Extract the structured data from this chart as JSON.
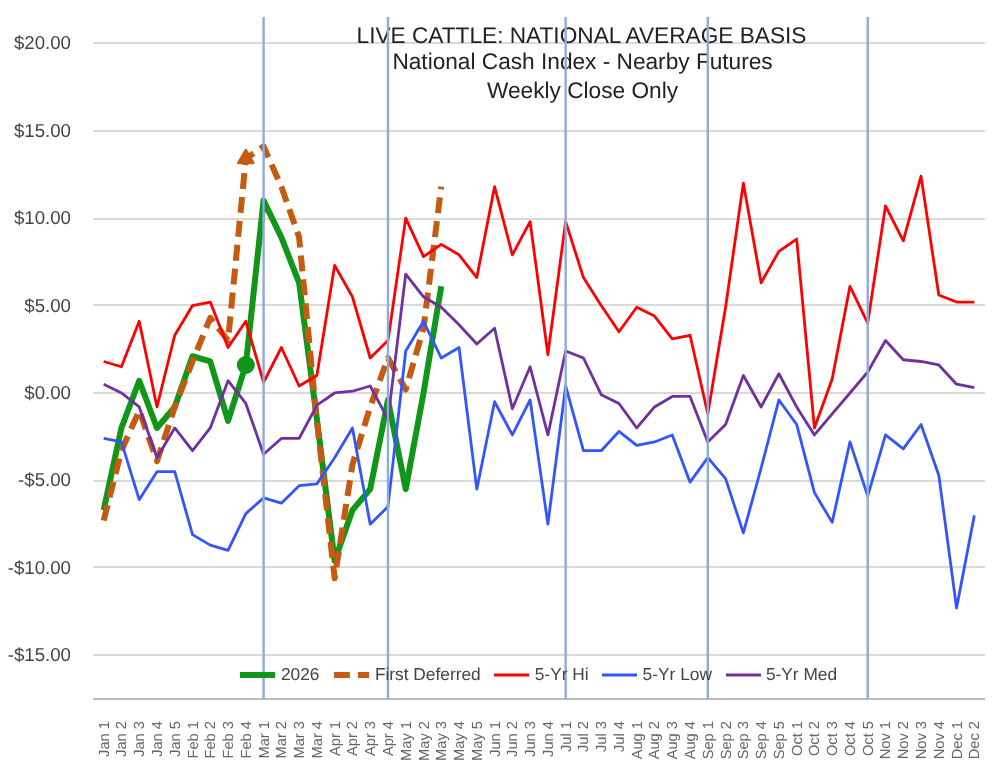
{
  "chart_data": {
    "type": "line",
    "title": "LIVE CATTLE: NATIONAL AVERAGE BASIS",
    "subtitle": "National Cash Index - Nearby Futures\nWeekly Close Only",
    "categories": [
      "Jan 1",
      "Jan 2",
      "Jan 3",
      "Jan 4",
      "Jan 5",
      "Feb 1",
      "Feb 2",
      "Feb 3",
      "Feb 4",
      "Mar 1",
      "Mar 2",
      "Mar 3",
      "Mar 4",
      "Apr 1",
      "Apr 2",
      "Apr 3",
      "Apr 4",
      "May 1",
      "May 2",
      "May 3",
      "May 4",
      "May 5",
      "Jun 1",
      "Jun 2",
      "Jun 3",
      "Jun 4",
      "Jul 1",
      "Jul 2",
      "Jul 3",
      "Jul 4",
      "Aug 1",
      "Aug 2",
      "Aug 3",
      "Aug 4",
      "Sep 1",
      "Sep 2",
      "Sep 3",
      "Sep 4",
      "Sep 5",
      "Oct 1",
      "Oct 2",
      "Oct 3",
      "Oct 4",
      "Oct 5",
      "Nov 1",
      "Nov 2",
      "Nov 3",
      "Nov 4",
      "Dec 1",
      "Dec 2"
    ],
    "series": [
      {
        "name": "2026",
        "color": "#109618",
        "line_style": "solid",
        "values": [
          -6.7,
          -2.0,
          0.7,
          -2.0,
          -0.8,
          2.1,
          1.8,
          -1.6,
          1.6,
          11.0,
          8.9,
          6.3,
          -1.5,
          -9.6,
          -6.7,
          -5.5,
          -0.4,
          -5.5,
          0.0,
          6.1,
          null,
          null,
          null,
          null,
          null,
          null,
          null,
          null,
          null,
          null,
          null,
          null,
          null,
          null,
          null,
          null,
          null,
          null,
          null,
          null,
          null,
          null,
          null,
          null,
          null,
          null,
          null,
          null,
          null,
          null
        ]
      },
      {
        "name": "First Deferred",
        "color": "#c55a11",
        "line_style": "dashed",
        "values": [
          -7.3,
          -3.3,
          -1.0,
          -3.9,
          -0.8,
          1.8,
          4.3,
          3.0,
          13.4,
          14.1,
          11.8,
          8.9,
          -1.6,
          -10.6,
          -4.1,
          -0.8,
          2.0,
          0.2,
          3.7,
          11.8,
          null,
          null,
          null,
          null,
          null,
          null,
          null,
          null,
          null,
          null,
          null,
          null,
          null,
          null,
          null,
          null,
          null,
          null,
          null,
          null,
          null,
          null,
          null,
          null,
          null,
          null,
          null,
          null,
          null,
          null
        ]
      },
      {
        "name": "5-Yr Hi",
        "color": "#ff0000",
        "line_style": "solid",
        "values": [
          1.8,
          1.5,
          4.1,
          -0.8,
          3.3,
          5.0,
          5.2,
          2.6,
          4.1,
          0.6,
          2.6,
          0.4,
          1.0,
          7.3,
          5.5,
          2.0,
          3.0,
          10.0,
          7.8,
          8.5,
          7.9,
          6.6,
          11.8,
          7.9,
          9.8,
          2.2,
          9.8,
          6.6,
          5.0,
          3.5,
          4.9,
          4.4,
          3.1,
          3.3,
          -1.2,
          4.9,
          12.0,
          6.3,
          8.1,
          8.8,
          -2.0,
          0.8,
          6.1,
          4.0,
          10.7,
          8.7,
          12.4,
          5.6,
          5.2,
          5.2
        ]
      },
      {
        "name": "5-Yr Low",
        "color": "#3355ff",
        "line_style": "solid",
        "values": [
          -2.6,
          -2.8,
          -6.1,
          -4.5,
          -4.5,
          -8.1,
          -8.7,
          -9.0,
          -6.9,
          -6.0,
          -6.3,
          -5.3,
          -5.2,
          -3.7,
          -2.0,
          -7.5,
          -6.5,
          2.4,
          4.1,
          2.0,
          2.6,
          -5.5,
          -0.5,
          -2.4,
          -0.4,
          -7.5,
          0.4,
          -3.3,
          -3.3,
          -2.2,
          -3.0,
          -2.8,
          -2.4,
          -5.1,
          -3.7,
          -4.9,
          -8.0,
          -4.3,
          -0.4,
          -1.8,
          -5.7,
          -7.4,
          -2.8,
          -5.9,
          -2.4,
          -3.2,
          -1.8,
          -4.7,
          -12.3,
          -7.0
        ]
      },
      {
        "name": "5-Yr Med",
        "color": "#7030a0",
        "line_style": "solid",
        "values": [
          0.5,
          0.0,
          -0.8,
          -3.7,
          -2.0,
          -3.3,
          -2.0,
          0.7,
          -0.6,
          -3.5,
          -2.6,
          -2.6,
          -0.7,
          0.0,
          0.1,
          0.4,
          -1.5,
          6.8,
          5.5,
          4.9,
          3.9,
          2.8,
          3.7,
          -0.9,
          1.5,
          -2.4,
          2.4,
          2.0,
          -0.1,
          -0.6,
          -2.0,
          -0.8,
          -0.2,
          -0.2,
          -2.8,
          -1.8,
          1.0,
          -0.8,
          1.1,
          -0.8,
          -2.4,
          -1.2,
          0.0,
          1.2,
          3.0,
          1.9,
          1.8,
          1.6,
          0.5,
          0.3
        ]
      },
      {
        "type": "scatter",
        "marker": "circle",
        "color": "#109618",
        "x": [
          "Feb 4"
        ],
        "values": [
          1.6
        ]
      },
      {
        "type": "scatter",
        "marker": "triangle",
        "color": "#c55a11",
        "x": [
          "Feb 4"
        ],
        "values": [
          13.4
        ]
      }
    ],
    "ylim": [
      -17.5,
      21.5
    ],
    "yticks": [
      {
        "value": -15,
        "label": "-$15.00"
      },
      {
        "value": -10,
        "label": "-$10.00"
      },
      {
        "value": -5,
        "label": "-$5.00"
      },
      {
        "value": 0,
        "label": "$0.00"
      },
      {
        "value": 5,
        "label": "$5.00"
      },
      {
        "value": 10,
        "label": "$10.00"
      },
      {
        "value": 15,
        "label": "$15.00"
      },
      {
        "value": 20,
        "label": "$20.00"
      }
    ],
    "ref_lines": [
      {
        "axis": "x",
        "value": "Mar 1",
        "color": "#8faadc"
      },
      {
        "axis": "x",
        "value": "Apr 4",
        "color": "#8faadc"
      },
      {
        "axis": "x",
        "value": "Jul 1",
        "color": "#8faadc"
      },
      {
        "axis": "x",
        "value": "Sep 1",
        "color": "#8faadc"
      },
      {
        "axis": "x",
        "value": "Oct 5",
        "color": "#8faadc"
      }
    ],
    "grid": "y",
    "legend": "bottom"
  }
}
